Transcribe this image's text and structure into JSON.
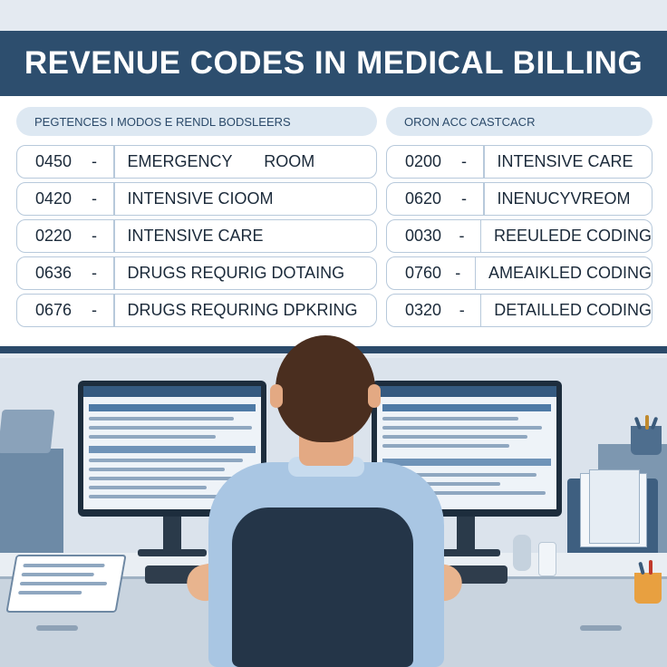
{
  "board": {
    "title": "REVENUE CODES IN MEDICAL BILLING",
    "left_header": "PEGTENCES I MODOS E RENDL BODSLEERS",
    "right_header": "ORON ACC CASTCACR",
    "left_rows": [
      {
        "code": "0450",
        "dash": "-",
        "desc": "EMERGENCY       ROOM"
      },
      {
        "code": "0420",
        "dash": "-",
        "desc": "INTENSIVE CIOOM"
      },
      {
        "code": "0220",
        "dash": "-",
        "desc": "INTENSIVE CARE"
      },
      {
        "code": "0636",
        "dash": "-",
        "desc": "DRUGS REQURIG DOTAING"
      },
      {
        "code": "0676",
        "dash": "-",
        "desc": "DRUGS REQURING DPKRING"
      }
    ],
    "right_rows": [
      {
        "code": "0200",
        "dash": "-",
        "desc": "INTENSIVE CARE"
      },
      {
        "code": "0620",
        "dash": "-",
        "desc": "INENUCYVREOM"
      },
      {
        "code": "0030",
        "dash": "-",
        "desc": "REEULEDE CODING"
      },
      {
        "code": "0760",
        "dash": "-",
        "desc": "AMEAIKLED CODING"
      },
      {
        "code": "0320",
        "dash": "-",
        "desc": "DETAILLED CODING"
      }
    ]
  },
  "icons": {
    "person": "person-back-view-icon",
    "monitor": "monitor-icon",
    "keyboard": "keyboard-icon",
    "chair": "office-chair-icon",
    "tablet": "tablet-icon",
    "pencil_cup": "pencil-cup-icon",
    "folders": "file-folders-icon"
  },
  "colors": {
    "title_bar": "#2d4e6e",
    "row_border": "#b7c9db",
    "header_pill": "#dde8f2",
    "shirt": "#a9c6e3"
  }
}
